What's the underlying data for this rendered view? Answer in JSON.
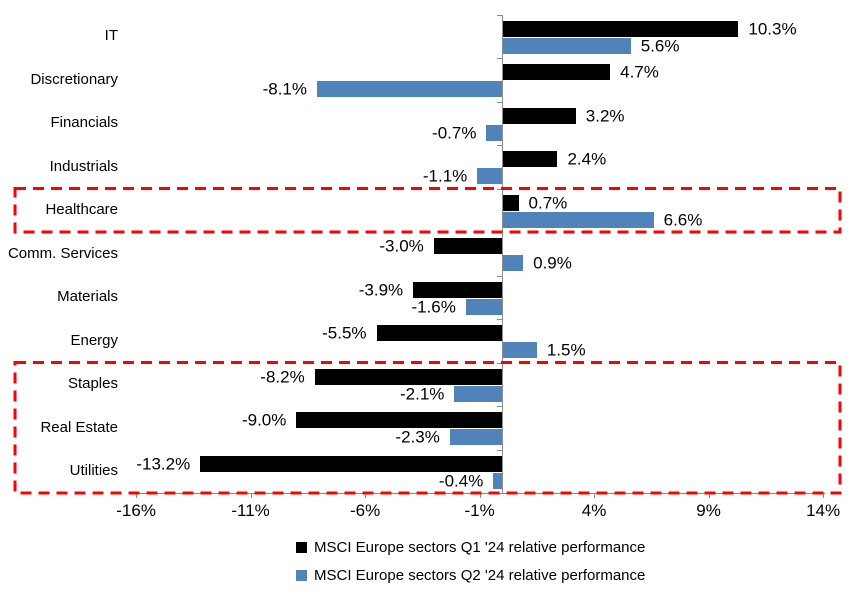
{
  "chart_data": {
    "type": "bar",
    "orientation": "horizontal",
    "title": "",
    "xlabel": "",
    "ylabel": "",
    "grid": false,
    "legend_position": "bottom-center",
    "xlim": [
      -16,
      14
    ],
    "categories": [
      "IT",
      "Discretionary",
      "Financials",
      "Industrials",
      "Healthcare",
      "Comm. Services",
      "Materials",
      "Energy",
      "Staples",
      "Real Estate",
      "Utilities"
    ],
    "series": [
      {
        "name": "MSCI Europe sectors Q1 '24 relative performance",
        "color": "#000000",
        "values": [
          10.3,
          4.7,
          3.2,
          2.4,
          0.7,
          -3.0,
          -3.9,
          -5.5,
          -8.2,
          -9.0,
          -13.2
        ],
        "labels": [
          "10.3%",
          "4.7%",
          "3.2%",
          "2.4%",
          "0.7%",
          "-3.0%",
          "-3.9%",
          "-5.5%",
          "-8.2%",
          "-9.0%",
          "-13.2%"
        ]
      },
      {
        "name": "MSCI Europe sectors Q2 '24 relative performance",
        "color": "#4F83BA",
        "values": [
          5.6,
          -8.1,
          -0.7,
          -1.1,
          6.6,
          0.9,
          -1.6,
          1.5,
          -2.1,
          -2.3,
          -0.4
        ],
        "labels": [
          "5.6%",
          "-8.1%",
          "-0.7%",
          "-1.1%",
          "6.6%",
          "0.9%",
          "-1.6%",
          "1.5%",
          "-2.1%",
          "-2.3%",
          "-0.4%"
        ]
      }
    ],
    "x_ticks": [
      {
        "value": -16,
        "label": "-16%"
      },
      {
        "value": -11,
        "label": "-11%"
      },
      {
        "value": -6,
        "label": "-6%"
      },
      {
        "value": -1,
        "label": "-1%"
      },
      {
        "value": 4,
        "label": "4%"
      },
      {
        "value": 9,
        "label": "9%"
      },
      {
        "value": 14,
        "label": "14%"
      }
    ],
    "highlight_boxes": [
      {
        "rows": [
          4,
          4
        ],
        "color": "#FF0000",
        "purpose": "highlight-healthcare"
      },
      {
        "rows": [
          8,
          10
        ],
        "color": "#FF0000",
        "purpose": "highlight-defensives"
      }
    ],
    "axis_color": "#8C8C8C"
  }
}
